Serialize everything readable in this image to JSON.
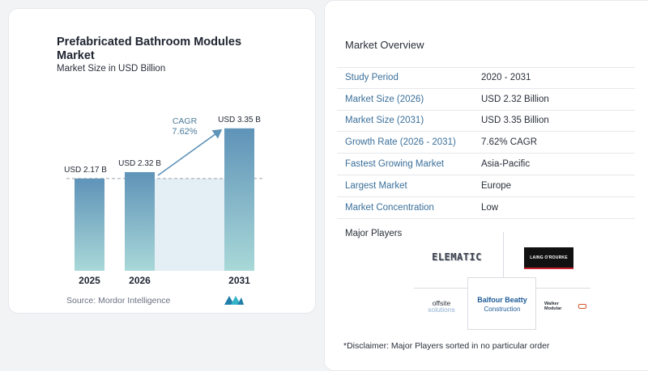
{
  "chart_data": {
    "type": "bar",
    "title": "Prefabricated Bathroom Modules Market",
    "subtitle": "Market Size in USD Billion",
    "categories": [
      "2025",
      "2026",
      "2031"
    ],
    "values": [
      2.17,
      2.32,
      3.35
    ],
    "value_labels": [
      "USD 2.17 B",
      "USD 2.32 B",
      "USD 3.35 B"
    ],
    "cagr_label": "CAGR",
    "cagr_value": "7.62%",
    "ylim": [
      0,
      3.5
    ],
    "colors": {
      "bar_top": "#5f93b8",
      "bar_bottom": "#a9d8d8",
      "band": "#e3eef5",
      "dash": "#9aa3ad",
      "arrow": "#5f93b8"
    }
  },
  "source": "Source:  Mordor Intelligence",
  "overview": {
    "title": "Market Overview",
    "rows": [
      {
        "key": "Study Period",
        "value": "2020 - 2031"
      },
      {
        "key": "Market Size (2026)",
        "value": "USD 2.32 Billion"
      },
      {
        "key": "Market Size (2031)",
        "value": "USD 3.35 Billion"
      },
      {
        "key": "Growth Rate (2026 - 2031)",
        "value": "7.62% CAGR"
      },
      {
        "key": "Fastest Growing Market",
        "value": "Asia-Pacific"
      },
      {
        "key": "Largest Market",
        "value": "Europe"
      },
      {
        "key": "Market Concentration",
        "value": "Low"
      }
    ]
  },
  "players": {
    "title": "Major Players",
    "logos": {
      "elematic": "ELEMATIC",
      "laing": "LAING O'ROURKE",
      "offsite_top": "offsite",
      "offsite_bottom": "solutions",
      "balfour_top": "Balfour Beatty",
      "balfour_bottom": "Construction",
      "walker": "Walker Modular"
    }
  },
  "disclaimer": "*Disclaimer: Major Players sorted in no particular order"
}
